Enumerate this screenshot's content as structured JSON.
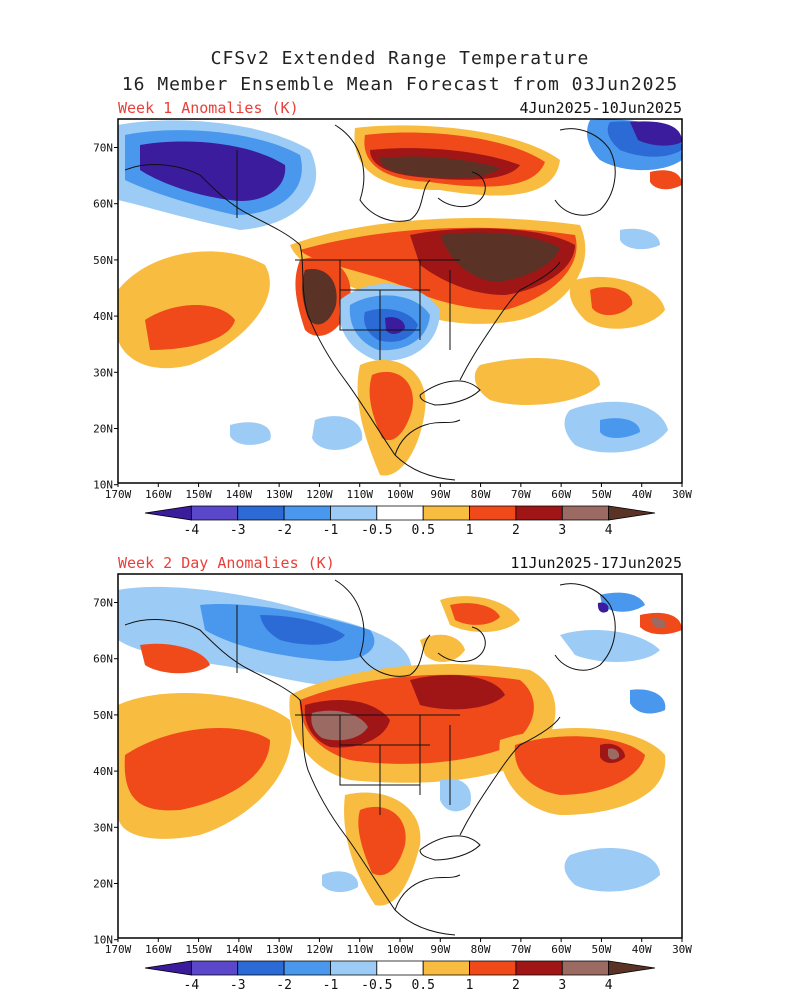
{
  "title_line1": "CFSv2 Extended Range Temperature",
  "title_line2": "16 Member Ensemble Mean Forecast from 03Jun2025",
  "panels": [
    {
      "label": "Week 1 Anomalies (K)",
      "dates": "4Jun2025-10Jun2025"
    },
    {
      "label": "Week 2 Day Anomalies (K)",
      "dates": "11Jun2025-17Jun2025"
    }
  ],
  "lon_labels": [
    "170W",
    "160W",
    "150W",
    "140W",
    "130W",
    "120W",
    "110W",
    "100W",
    "90W",
    "80W",
    "70W",
    "60W",
    "50W",
    "40W",
    "30W"
  ],
  "lat_labels": [
    "70N",
    "60N",
    "50N",
    "40N",
    "30N",
    "20N",
    "10N"
  ],
  "colorbar": {
    "tick_labels": [
      "-4",
      "-3",
      "-2",
      "-1",
      "-0.5",
      "0.5",
      "1",
      "2",
      "3",
      "4"
    ],
    "colors": [
      "#3a1c9c",
      "#5b47c9",
      "#2c6bd6",
      "#4a98ee",
      "#9ccbf5",
      "#ffffff",
      "#f8bd40",
      "#f04a1a",
      "#a01616",
      "#9b6a62",
      "#5b3226"
    ]
  }
}
